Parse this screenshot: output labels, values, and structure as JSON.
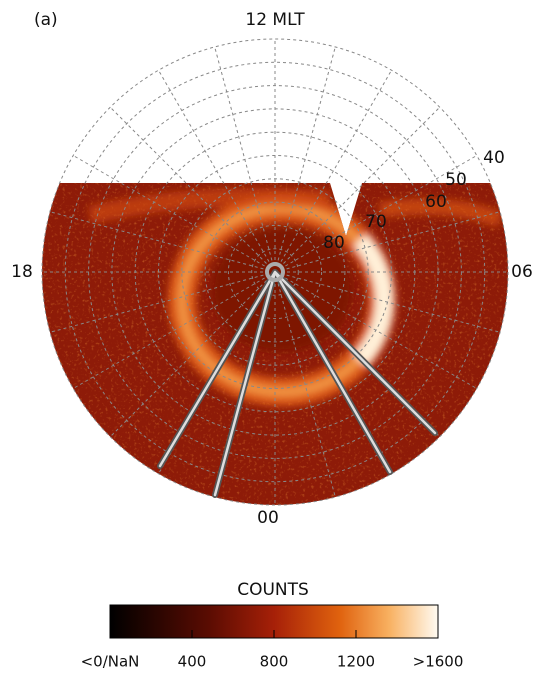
{
  "chart_data": {
    "type": "polar-image",
    "title": "(a)",
    "mlt_labels": {
      "top": "12 MLT",
      "left": "18",
      "right": "06",
      "bottom": "00"
    },
    "lat_labels": [
      "40",
      "50",
      "60",
      "70",
      "80"
    ],
    "colorbar": {
      "title": "COUNTS",
      "lim": [
        0,
        1600
      ],
      "ticks": [
        {
          "value": 0,
          "label": "<0/NaN"
        },
        400,
        800,
        1200,
        {
          "value": 1600,
          "label": ">1600"
        }
      ]
    }
  }
}
